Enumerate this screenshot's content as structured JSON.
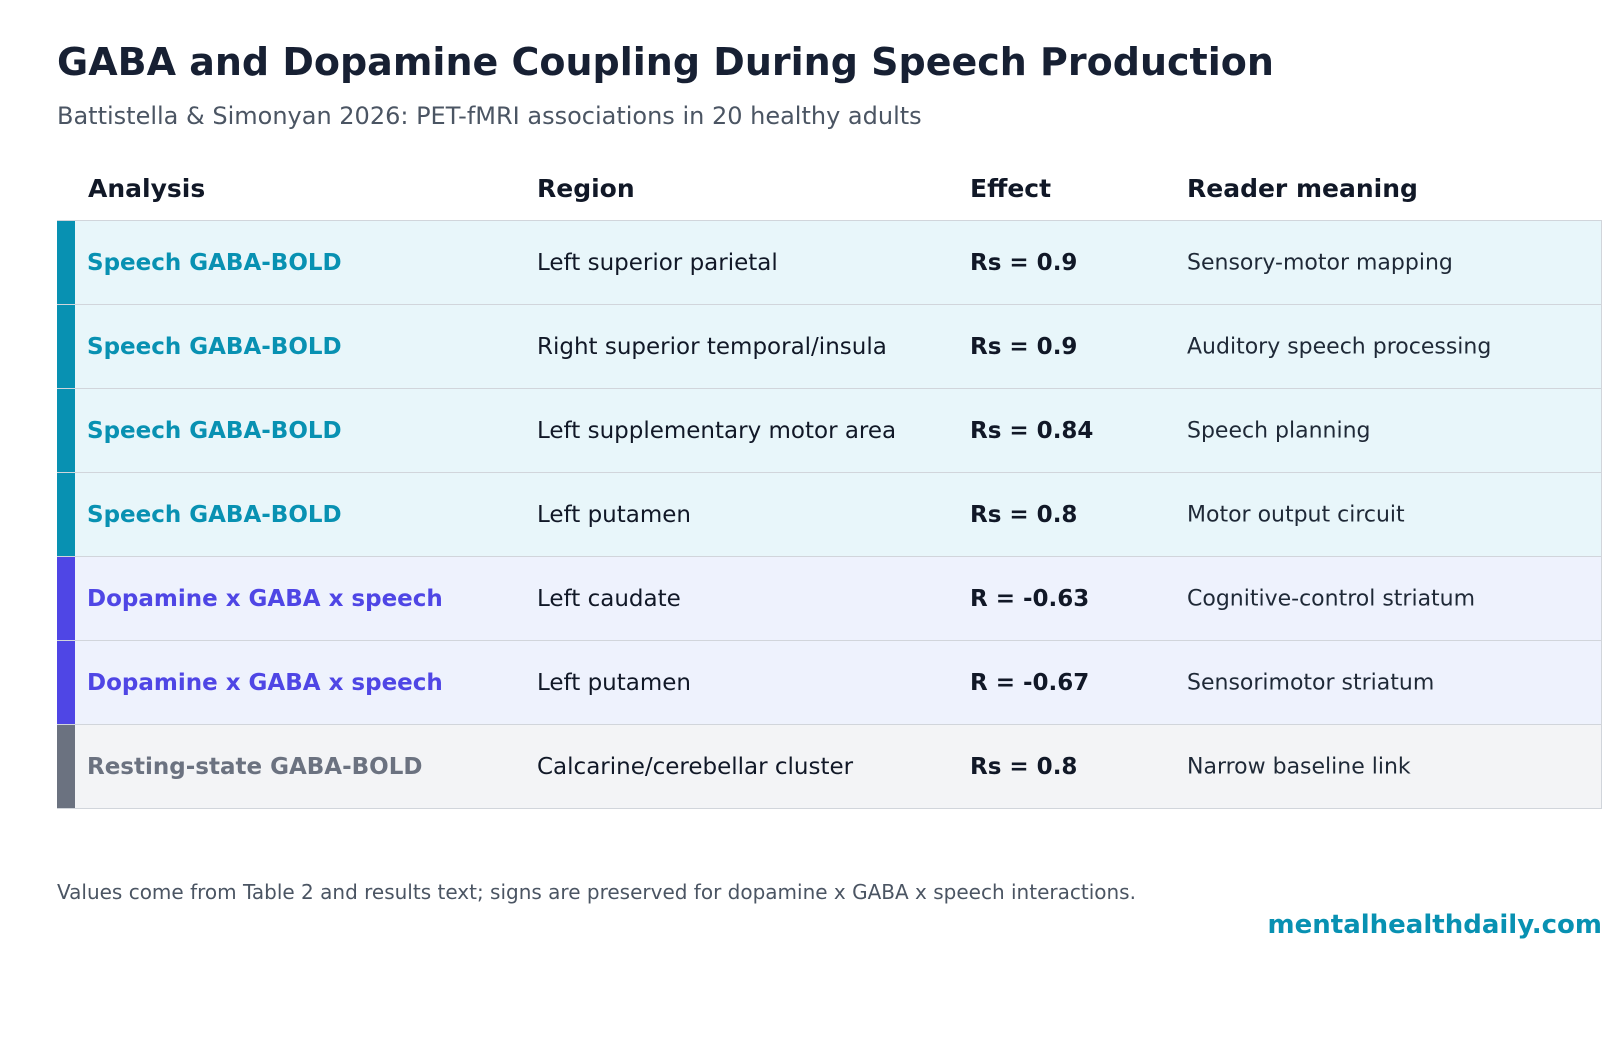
{
  "chart_data": {
    "type": "table",
    "title": "GABA and Dopamine Coupling During Speech Production",
    "subtitle": "Battistella & Simonyan 2026: PET-fMRI associations in 20 healthy adults",
    "columns": [
      "Analysis",
      "Region",
      "Effect",
      "Reader meaning"
    ],
    "rows": [
      {
        "analysis": "Speech GABA-BOLD",
        "region": "Left superior parietal",
        "effect": "Rs = 0.9",
        "effect_value": 0.9,
        "meaning": "Sensory-motor mapping",
        "accent": "#0891b2",
        "bg": "#e8f6fa"
      },
      {
        "analysis": "Speech GABA-BOLD",
        "region": "Right superior temporal/insula",
        "effect": "Rs = 0.9",
        "effect_value": 0.9,
        "meaning": "Auditory speech processing",
        "accent": "#0891b2",
        "bg": "#e8f6fa"
      },
      {
        "analysis": "Speech GABA-BOLD",
        "region": "Left supplementary motor area",
        "effect": "Rs = 0.84",
        "effect_value": 0.84,
        "meaning": "Speech planning",
        "accent": "#0891b2",
        "bg": "#e8f6fa"
      },
      {
        "analysis": "Speech GABA-BOLD",
        "region": "Left putamen",
        "effect": "Rs = 0.8",
        "effect_value": 0.8,
        "meaning": "Motor output circuit",
        "accent": "#0891b2",
        "bg": "#e8f6fa"
      },
      {
        "analysis": "Dopamine x GABA x speech",
        "region": "Left caudate",
        "effect": "R = -0.63",
        "effect_value": -0.63,
        "meaning": "Cognitive-control striatum",
        "accent": "#4f46e5",
        "bg": "#eef2fd"
      },
      {
        "analysis": "Dopamine x GABA x speech",
        "region": "Left putamen",
        "effect": "R = -0.67",
        "effect_value": -0.67,
        "meaning": "Sensorimotor striatum",
        "accent": "#4f46e5",
        "bg": "#eef2fd"
      },
      {
        "analysis": "Resting-state GABA-BOLD",
        "region": "Calcarine/cerebellar cluster",
        "effect": "Rs = 0.8",
        "effect_value": 0.8,
        "meaning": "Narrow baseline link",
        "accent": "#6b7280",
        "bg": "#f3f4f6"
      }
    ],
    "footnote": "Values come from Table 2 and results text; signs are preserved for dopamine x GABA x speech interactions.",
    "brand": "mentalhealthdaily.com"
  },
  "colors": {
    "title": "#172033",
    "brand": "#0891b2",
    "border": "#d1d5db"
  }
}
